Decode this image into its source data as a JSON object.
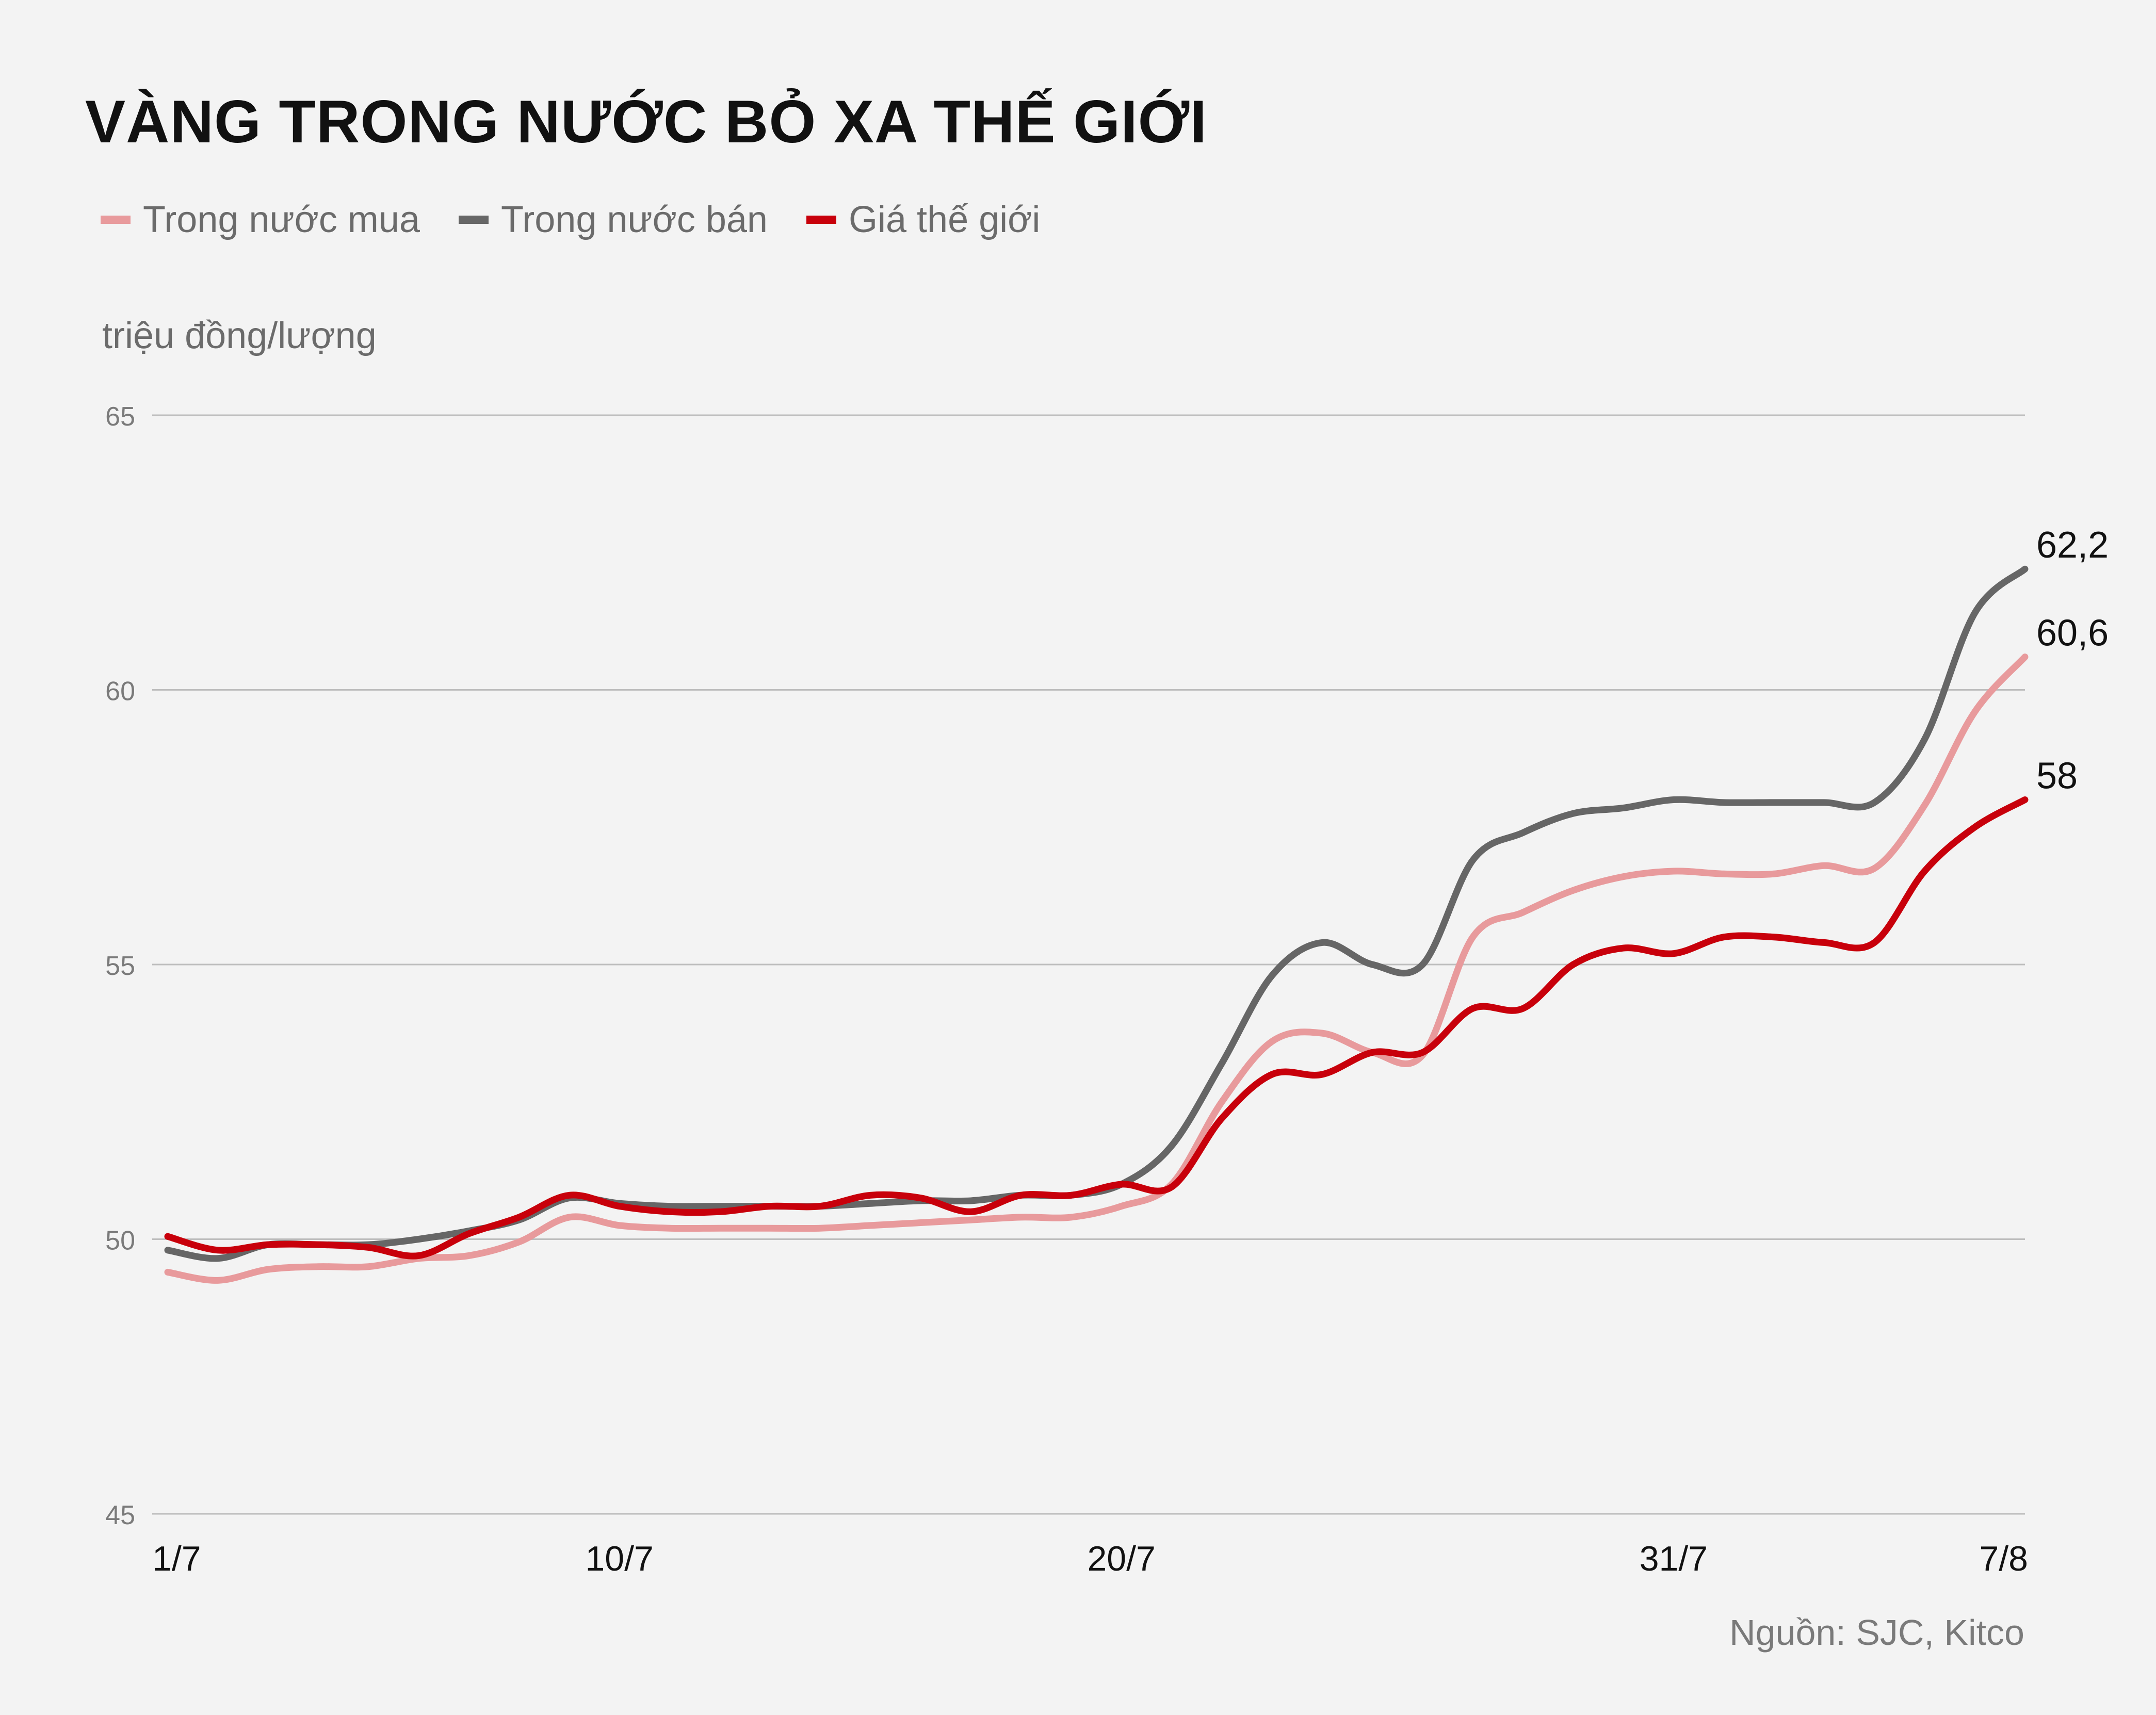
{
  "title": "VÀNG TRONG NƯỚC BỎ XA THẾ GIỚI",
  "legend": [
    {
      "label": "Trong nước mua",
      "color": "#e89a9c"
    },
    {
      "label": "Trong nước bán",
      "color": "#666666"
    },
    {
      "label": "Giá thế giới",
      "color": "#c8000b"
    }
  ],
  "unit_label": "triệu đồng/lượng",
  "source": "Nguồn: SJC, Kitco",
  "chart_data": {
    "type": "line",
    "title": "VÀNG TRONG NƯỚC BỎ XA THẾ GIỚI",
    "ylabel": "triệu đồng/lượng",
    "xlabel": "",
    "ylim": [
      45,
      65
    ],
    "yticks": [
      45,
      50,
      55,
      60,
      65
    ],
    "xlim": [
      1,
      38
    ],
    "x_ticks": [
      {
        "x": 1,
        "label": "1/7"
      },
      {
        "x": 10,
        "label": "10/7"
      },
      {
        "x": 20,
        "label": "20/7"
      },
      {
        "x": 31,
        "label": "31/7"
      },
      {
        "x": 38,
        "label": "7/8"
      }
    ],
    "grid": true,
    "legend_position": "top-left",
    "x": [
      1,
      2,
      3,
      4,
      5,
      6,
      7,
      8,
      9,
      10,
      11,
      12,
      13,
      14,
      15,
      16,
      17,
      18,
      19,
      20,
      21,
      22,
      23,
      24,
      25,
      26,
      27,
      28,
      29,
      30,
      31,
      32,
      33,
      34,
      35,
      36,
      37,
      38
    ],
    "series": [
      {
        "name": "Trong nước mua",
        "color": "#e89a9c",
        "values": [
          49.4,
          49.25,
          49.45,
          49.5,
          49.5,
          49.65,
          49.7,
          49.95,
          50.4,
          50.25,
          50.2,
          50.2,
          50.2,
          50.2,
          50.25,
          50.3,
          50.35,
          50.4,
          50.4,
          50.6,
          51.0,
          52.5,
          53.6,
          53.75,
          53.4,
          53.35,
          55.5,
          55.95,
          56.35,
          56.6,
          56.7,
          56.65,
          56.65,
          56.8,
          56.75,
          57.9,
          59.6,
          60.6
        ],
        "end_label": "60,6"
      },
      {
        "name": "Trong nước bán",
        "color": "#666666",
        "values": [
          49.8,
          49.65,
          49.9,
          49.9,
          49.9,
          50.0,
          50.15,
          50.35,
          50.75,
          50.65,
          50.6,
          50.6,
          50.6,
          50.6,
          50.65,
          50.7,
          50.7,
          50.8,
          50.8,
          51.0,
          51.7,
          53.2,
          54.8,
          55.4,
          55.0,
          55.0,
          56.9,
          57.4,
          57.75,
          57.85,
          58.0,
          57.95,
          57.95,
          57.95,
          57.95,
          59.1,
          61.4,
          62.2
        ],
        "end_label": "62,2"
      },
      {
        "name": "Giá thế giới",
        "color": "#c8000b",
        "values": [
          50.05,
          49.8,
          49.9,
          49.9,
          49.85,
          49.7,
          50.1,
          50.4,
          50.8,
          50.6,
          50.5,
          50.5,
          50.6,
          50.6,
          50.8,
          50.75,
          50.5,
          50.8,
          50.8,
          51.0,
          50.95,
          52.2,
          53.0,
          53.0,
          53.4,
          53.4,
          54.2,
          54.2,
          55.0,
          55.3,
          55.2,
          55.5,
          55.5,
          55.4,
          55.4,
          56.7,
          57.5,
          58.0
        ],
        "end_label": "58"
      }
    ]
  }
}
